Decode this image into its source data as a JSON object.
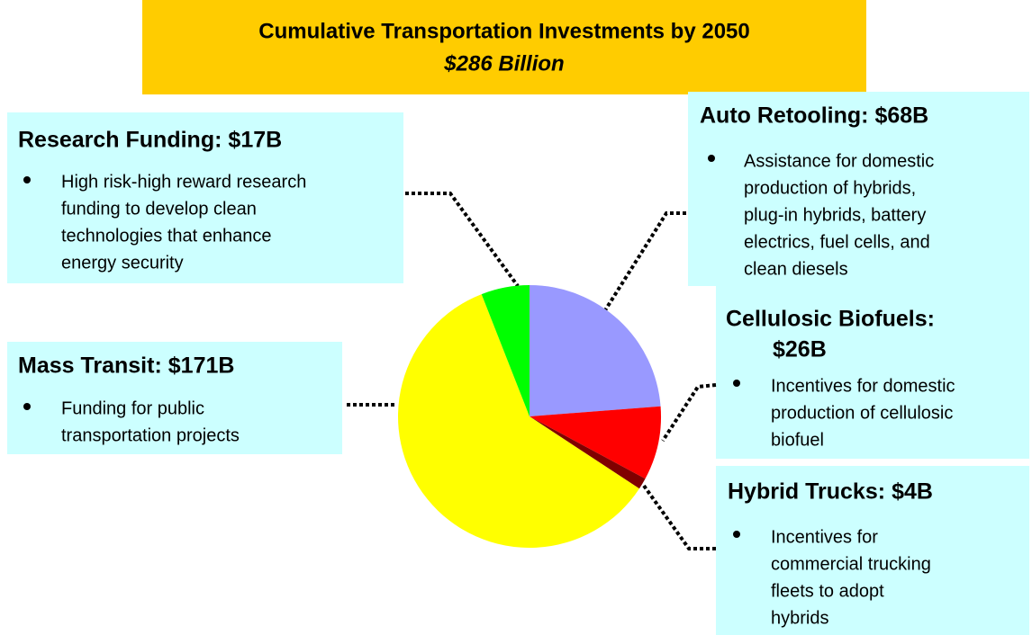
{
  "chart_data": {
    "type": "pie",
    "title": "Cumulative Transportation Investments by 2050",
    "subtitle": "$286 Billion",
    "categories": [
      "Auto Retooling:",
      "Cellulosic Biofuels:",
      "Hybrid Trucks:",
      "Mass Transit:",
      "Research Funding:"
    ],
    "values": [
      68,
      26,
      4,
      171,
      17
    ],
    "value_labels": [
      "$68B",
      "$26B",
      "$4B",
      "$171B",
      "$17B"
    ],
    "colors": [
      "#9999ff",
      "#ff0000",
      "#800000",
      "#ffff00",
      "#00ff00"
    ],
    "descriptions": [
      [
        "Assistance for domestic",
        "production of hybrids,",
        "plug-in hybrids, battery",
        "electrics, fuel cells, and",
        "clean diesels"
      ],
      [
        "Incentives for domestic",
        "production of cellulosic",
        "biofuel"
      ],
      [
        "Incentives for",
        "commercial trucking",
        "fleets to adopt",
        "hybrids"
      ],
      [
        "Funding for public",
        "transportation projects"
      ],
      [
        "High risk-high reward research",
        "funding to develop clean",
        "technologies that enhance",
        "energy security"
      ]
    ]
  }
}
